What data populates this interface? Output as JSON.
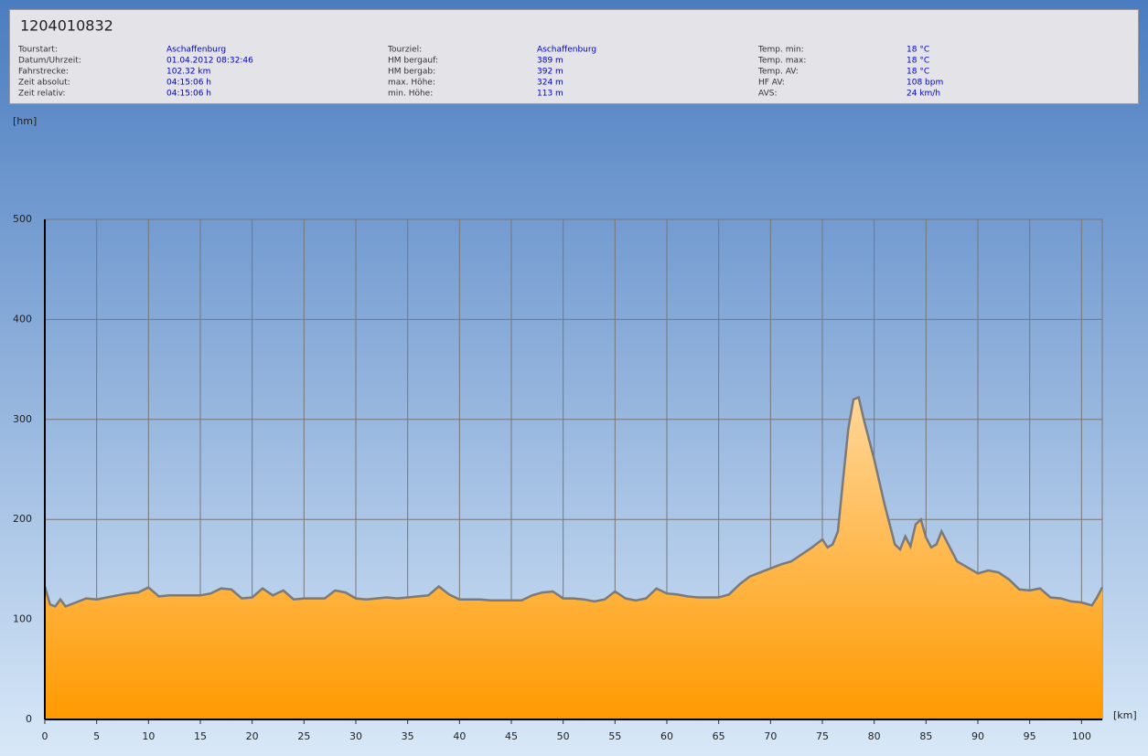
{
  "header": {
    "title": "1204010832",
    "columns": [
      {
        "rows": [
          {
            "label": "Tourstart:",
            "value": "Aschaffenburg"
          },
          {
            "label": "Datum/Uhrzeit:",
            "value": "01.04.2012 08:32:46"
          },
          {
            "label": "Fahrstrecke:",
            "value": "102.32 km"
          },
          {
            "label": "Zeit absolut:",
            "value": "04:15:06 h"
          },
          {
            "label": "Zeit relativ:",
            "value": "04:15:06 h"
          }
        ]
      },
      {
        "rows": [
          {
            "label": "Tourziel:",
            "value": "Aschaffenburg"
          },
          {
            "label": "HM bergauf:",
            "value": "389 m"
          },
          {
            "label": "HM bergab:",
            "value": "392 m"
          },
          {
            "label": "max. Höhe:",
            "value": "324 m"
          },
          {
            "label": "min. Höhe:",
            "value": "113 m"
          }
        ]
      },
      {
        "rows": [
          {
            "label": "Temp. min:",
            "value": "18 °C"
          },
          {
            "label": "Temp. max:",
            "value": "18 °C"
          },
          {
            "label": "Temp. AV:",
            "value": "18 °C"
          },
          {
            "label": "HF AV:",
            "value": "108 bpm"
          },
          {
            "label": "AVS:",
            "value": "24 km/h"
          }
        ]
      }
    ]
  },
  "chart_data": {
    "type": "area",
    "ylabel": "[hm]",
    "xlabel": "[km]",
    "x": [
      0,
      0.5,
      1,
      1.5,
      2,
      3,
      4,
      5,
      6,
      7,
      8,
      9,
      10,
      11,
      12,
      13,
      14,
      15,
      16,
      17,
      18,
      19,
      20,
      21,
      22,
      23,
      24,
      25,
      26,
      27,
      28,
      29,
      30,
      31,
      32,
      33,
      34,
      35,
      36,
      37,
      38,
      39,
      40,
      41,
      42,
      43,
      44,
      45,
      46,
      47,
      48,
      49,
      50,
      51,
      52,
      53,
      54,
      55,
      56,
      57,
      58,
      59,
      60,
      61,
      62,
      63,
      64,
      65,
      66,
      67,
      68,
      69,
      70,
      71,
      72,
      73,
      74,
      75,
      75.5,
      76,
      76.5,
      77,
      77.5,
      78,
      78.5,
      79,
      80,
      81,
      82,
      82.5,
      83,
      83.5,
      84,
      84.5,
      85,
      85.5,
      86,
      86.5,
      87,
      88,
      89,
      90,
      91,
      92,
      93,
      94,
      95,
      96,
      97,
      98,
      99,
      100,
      101,
      101.5,
      102
    ],
    "values": [
      133,
      115,
      113,
      120,
      113,
      117,
      121,
      120,
      122,
      124,
      126,
      127,
      132,
      123,
      124,
      124,
      124,
      124,
      126,
      131,
      130,
      121,
      122,
      131,
      124,
      129,
      120,
      121,
      121,
      121,
      129,
      127,
      121,
      120,
      121,
      122,
      121,
      122,
      123,
      124,
      133,
      125,
      120,
      120,
      120,
      119,
      119,
      119,
      119,
      124,
      127,
      128,
      121,
      121,
      120,
      118,
      120,
      128,
      121,
      119,
      121,
      131,
      126,
      125,
      123,
      122,
      122,
      122,
      125,
      135,
      143,
      147,
      151,
      155,
      158,
      165,
      172,
      180,
      172,
      175,
      188,
      240,
      290,
      320,
      322,
      300,
      260,
      215,
      175,
      170,
      183,
      173,
      195,
      200,
      182,
      172,
      175,
      188,
      178,
      158,
      152,
      146,
      149,
      147,
      140,
      130,
      129,
      131,
      122,
      121,
      118,
      117,
      114,
      122,
      132
    ],
    "fill": "#ffa726",
    "line_color": "#7a7a7a",
    "xlim": [
      0,
      102
    ],
    "xticks": [
      0,
      5,
      10,
      15,
      20,
      25,
      30,
      35,
      40,
      45,
      50,
      55,
      60,
      65,
      70,
      75,
      80,
      85,
      90,
      95,
      100
    ],
    "ylim": [
      0,
      500
    ],
    "yticks": [
      0,
      100,
      200,
      300,
      400,
      500
    ],
    "grid": true
  }
}
